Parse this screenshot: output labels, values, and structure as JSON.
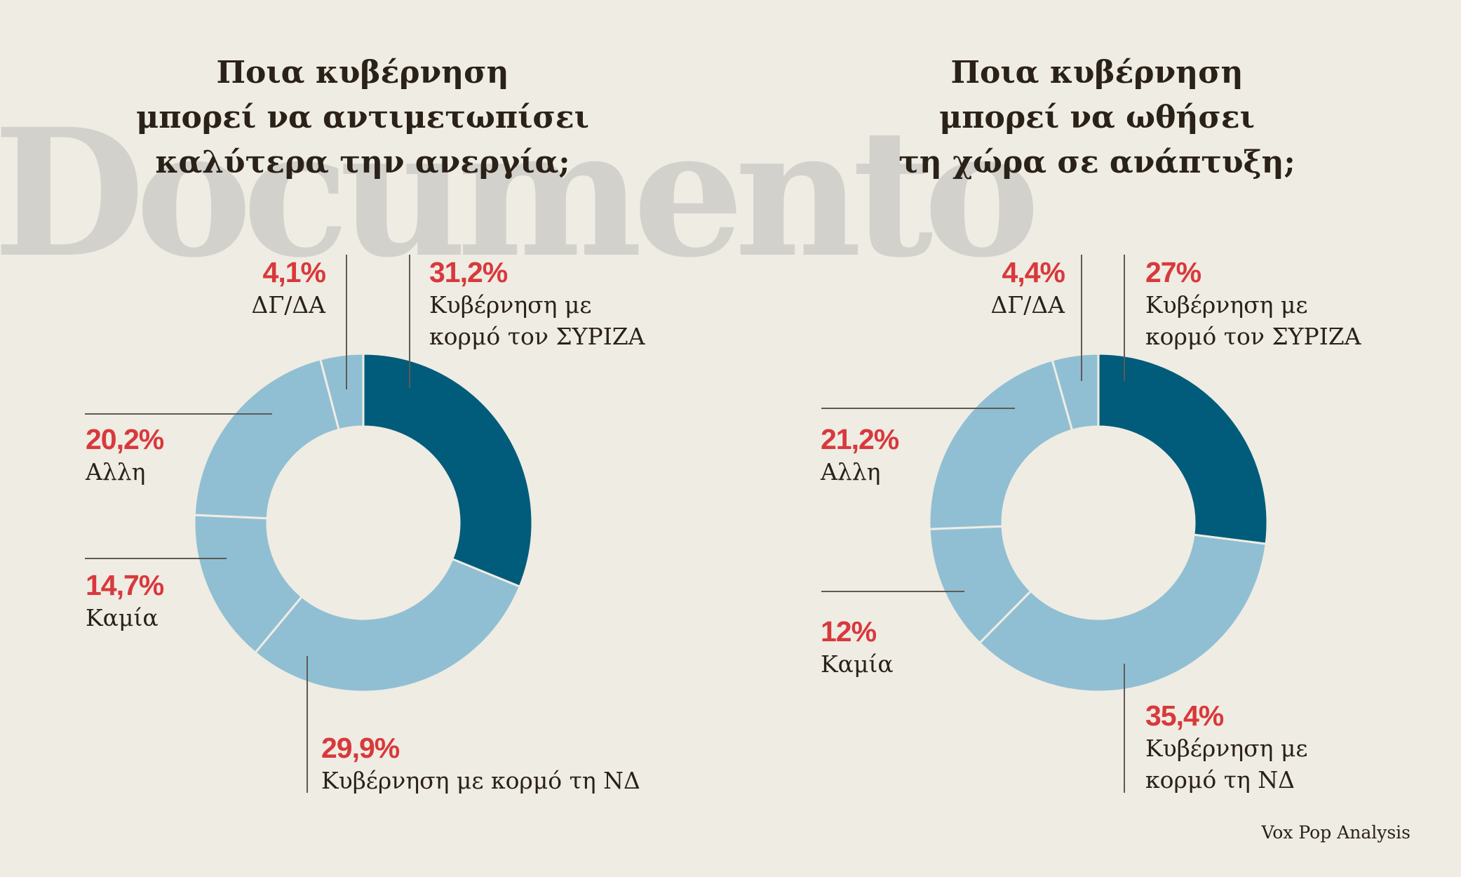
{
  "watermark": "Documento",
  "source": "Vox Pop Analysis",
  "colors": {
    "primary": "#005c7a",
    "secondary": "#90bfd3",
    "highlight": "#d8393c",
    "background": "#efece3"
  },
  "chart_data": [
    {
      "type": "pie",
      "title_lines": [
        "Ποια κυβέρνηση",
        "μπορεί να αντιμετωπίσει",
        "καλύτερα την ανεργία;"
      ],
      "slices": [
        {
          "value": "31,2%",
          "label_lines": [
            "Κυβέρνηση με",
            "κορμό τον ΣΥΡΙΖΑ"
          ],
          "pct": 31.2,
          "color": "#005c7a"
        },
        {
          "value": "29,9%",
          "label_lines": [
            "Κυβέρνηση με κορμό τη ΝΔ"
          ],
          "pct": 29.9,
          "color": "#90bfd3"
        },
        {
          "value": "14,7%",
          "label_lines": [
            "Καμία"
          ],
          "pct": 14.7,
          "color": "#90bfd3"
        },
        {
          "value": "20,2%",
          "label_lines": [
            "Αλλη"
          ],
          "pct": 20.2,
          "color": "#90bfd3"
        },
        {
          "value": "4,1%",
          "label_lines": [
            "ΔΓ/ΔΑ"
          ],
          "pct": 4.1,
          "color": "#90bfd3"
        }
      ]
    },
    {
      "type": "pie",
      "title_lines": [
        "Ποια κυβέρνηση",
        "μπορεί να ωθήσει",
        "τη χώρα σε ανάπτυξη;"
      ],
      "slices": [
        {
          "value": "27%",
          "label_lines": [
            "Κυβέρνηση με",
            "κορμό τον ΣΥΡΙΖΑ"
          ],
          "pct": 27,
          "color": "#005c7a"
        },
        {
          "value": "35,4%",
          "label_lines": [
            "Κυβέρνηση με",
            "κορμό τη ΝΔ"
          ],
          "pct": 35.4,
          "color": "#90bfd3"
        },
        {
          "value": "12%",
          "label_lines": [
            "Καμία"
          ],
          "pct": 12,
          "color": "#90bfd3"
        },
        {
          "value": "21,2%",
          "label_lines": [
            "Αλλη"
          ],
          "pct": 21.2,
          "color": "#90bfd3"
        },
        {
          "value": "4,4%",
          "label_lines": [
            "ΔΓ/ΔΑ"
          ],
          "pct": 4.4,
          "color": "#90bfd3"
        }
      ]
    }
  ]
}
